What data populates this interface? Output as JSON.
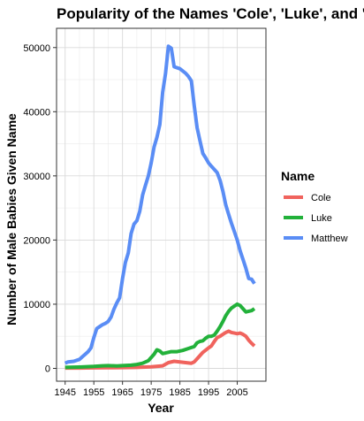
{
  "chart_data": {
    "type": "line",
    "title": "Popularity of the Names 'Cole', 'Luke', and 'Matthew'",
    "xlabel": "Year",
    "ylabel": "Number of Male Babies Given Name",
    "xlim": [
      1942,
      2015
    ],
    "ylim": [
      -2000,
      53000
    ],
    "x_ticks": [
      1945,
      1955,
      1965,
      1975,
      1985,
      1995,
      2005
    ],
    "x_tick_labels": [
      "1945",
      "1955",
      "1965",
      "1975",
      "1985",
      "1995",
      "2005"
    ],
    "y_ticks": [
      0,
      10000,
      20000,
      30000,
      40000,
      50000
    ],
    "y_tick_labels": [
      "0",
      "10000",
      "20000",
      "30000",
      "40000",
      "50000"
    ],
    "grid": true,
    "legend": {
      "title": "Name",
      "placement": "right"
    },
    "series": [
      {
        "name": "Cole",
        "color": "#F0635D",
        "points": [
          [
            1945,
            50
          ],
          [
            1950,
            60
          ],
          [
            1955,
            80
          ],
          [
            1960,
            100
          ],
          [
            1965,
            120
          ],
          [
            1970,
            150
          ],
          [
            1975,
            250
          ],
          [
            1979,
            400
          ],
          [
            1981,
            900
          ],
          [
            1983,
            1100
          ],
          [
            1985,
            1000
          ],
          [
            1987,
            900
          ],
          [
            1989,
            800
          ],
          [
            1990,
            1000
          ],
          [
            1991,
            1500
          ],
          [
            1993,
            2500
          ],
          [
            1995,
            3200
          ],
          [
            1996,
            3500
          ],
          [
            1997,
            4200
          ],
          [
            1998,
            4800
          ],
          [
            1999,
            5000
          ],
          [
            2000,
            5300
          ],
          [
            2001,
            5600
          ],
          [
            2002,
            5800
          ],
          [
            2003,
            5600
          ],
          [
            2004,
            5500
          ],
          [
            2005,
            5400
          ],
          [
            2006,
            5500
          ],
          [
            2007,
            5300
          ],
          [
            2008,
            5000
          ],
          [
            2009,
            4400
          ],
          [
            2010,
            3900
          ],
          [
            2011,
            3500
          ]
        ]
      },
      {
        "name": "Luke",
        "color": "#22B13A",
        "points": [
          [
            1945,
            150
          ],
          [
            1950,
            200
          ],
          [
            1955,
            300
          ],
          [
            1958,
            400
          ],
          [
            1960,
            420
          ],
          [
            1963,
            380
          ],
          [
            1965,
            420
          ],
          [
            1968,
            500
          ],
          [
            1970,
            600
          ],
          [
            1972,
            800
          ],
          [
            1974,
            1200
          ],
          [
            1976,
            2200
          ],
          [
            1977,
            2900
          ],
          [
            1978,
            2700
          ],
          [
            1979,
            2300
          ],
          [
            1980,
            2400
          ],
          [
            1982,
            2600
          ],
          [
            1984,
            2600
          ],
          [
            1986,
            2800
          ],
          [
            1988,
            3100
          ],
          [
            1990,
            3400
          ],
          [
            1991,
            4000
          ],
          [
            1992,
            4200
          ],
          [
            1993,
            4300
          ],
          [
            1994,
            4700
          ],
          [
            1995,
            5000
          ],
          [
            1996,
            5000
          ],
          [
            1997,
            5200
          ],
          [
            1998,
            5800
          ],
          [
            1999,
            6500
          ],
          [
            2000,
            7300
          ],
          [
            2001,
            8200
          ],
          [
            2002,
            8900
          ],
          [
            2003,
            9400
          ],
          [
            2004,
            9700
          ],
          [
            2005,
            10000
          ],
          [
            2006,
            9800
          ],
          [
            2007,
            9300
          ],
          [
            2008,
            8800
          ],
          [
            2009,
            8900
          ],
          [
            2010,
            9000
          ],
          [
            2011,
            9300
          ]
        ]
      },
      {
        "name": "Matthew",
        "color": "#5A8DF5",
        "points": [
          [
            1945,
            800
          ],
          [
            1946,
            1000
          ],
          [
            1948,
            1100
          ],
          [
            1950,
            1400
          ],
          [
            1951,
            1800
          ],
          [
            1952,
            2200
          ],
          [
            1953,
            2600
          ],
          [
            1954,
            3200
          ],
          [
            1955,
            4800
          ],
          [
            1956,
            6200
          ],
          [
            1957,
            6500
          ],
          [
            1958,
            6800
          ],
          [
            1959,
            7000
          ],
          [
            1960,
            7300
          ],
          [
            1961,
            8000
          ],
          [
            1962,
            9200
          ],
          [
            1963,
            10200
          ],
          [
            1964,
            11000
          ],
          [
            1965,
            14000
          ],
          [
            1966,
            16500
          ],
          [
            1967,
            18000
          ],
          [
            1968,
            21000
          ],
          [
            1969,
            22500
          ],
          [
            1970,
            23000
          ],
          [
            1971,
            24500
          ],
          [
            1972,
            27000
          ],
          [
            1973,
            28500
          ],
          [
            1974,
            30000
          ],
          [
            1975,
            32000
          ],
          [
            1976,
            34500
          ],
          [
            1977,
            36000
          ],
          [
            1978,
            38000
          ],
          [
            1979,
            43000
          ],
          [
            1980,
            46000
          ],
          [
            1981,
            50200
          ],
          [
            1982,
            49900
          ],
          [
            1983,
            47000
          ],
          [
            1985,
            46700
          ],
          [
            1987,
            46000
          ],
          [
            1988,
            45500
          ],
          [
            1989,
            44800
          ],
          [
            1990,
            41000
          ],
          [
            1991,
            37500
          ],
          [
            1992,
            35500
          ],
          [
            1993,
            33500
          ],
          [
            1994,
            32800
          ],
          [
            1995,
            32000
          ],
          [
            1996,
            31500
          ],
          [
            1997,
            31000
          ],
          [
            1998,
            30500
          ],
          [
            1999,
            29300
          ],
          [
            2000,
            27600
          ],
          [
            2001,
            25500
          ],
          [
            2002,
            24000
          ],
          [
            2003,
            22600
          ],
          [
            2004,
            21300
          ],
          [
            2005,
            20000
          ],
          [
            2006,
            18300
          ],
          [
            2007,
            17000
          ],
          [
            2008,
            15600
          ],
          [
            2009,
            14000
          ],
          [
            2010,
            13900
          ],
          [
            2011,
            13200
          ]
        ]
      }
    ]
  }
}
